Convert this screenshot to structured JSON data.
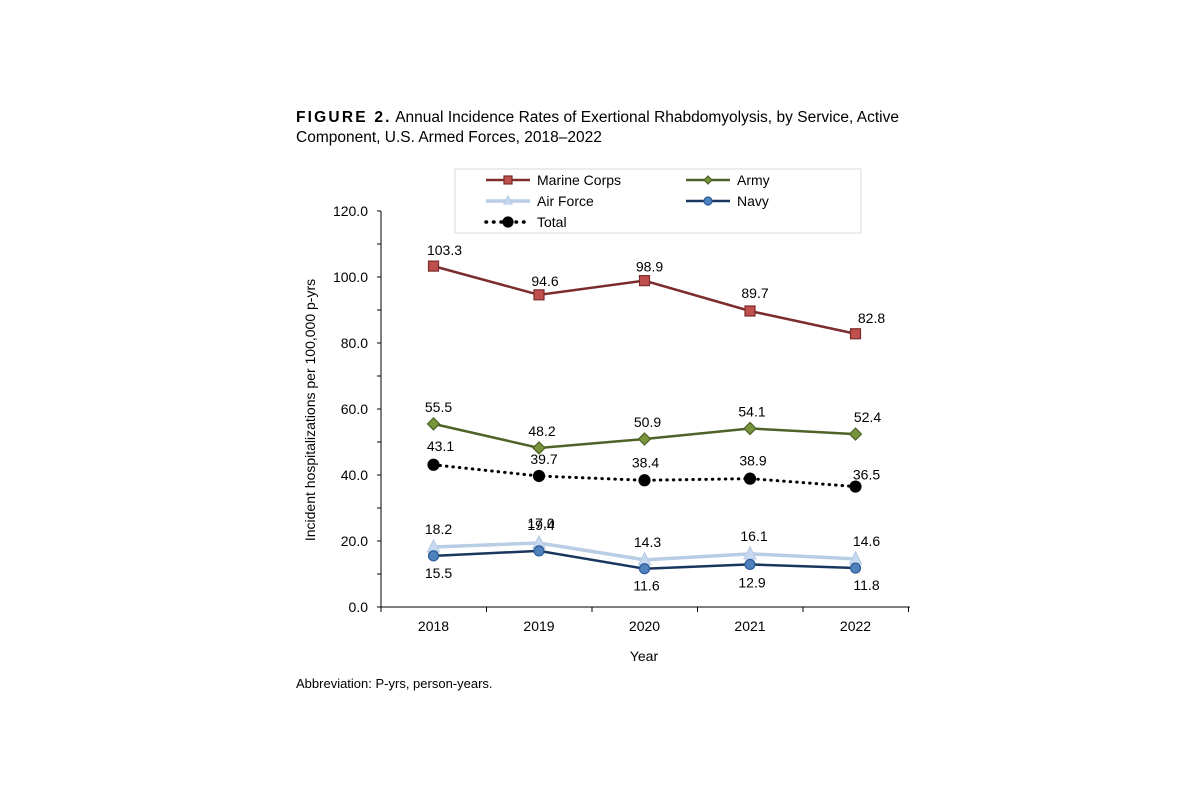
{
  "caption": {
    "label": "FIGURE 2.",
    "text": "Annual Incidence Rates of Exertional Rhabdomyolysis, by Service, Active Component, U.S. Armed Forces, 2018–2022"
  },
  "footnote": "Abbreviation: P-yrs, person-years.",
  "chart_data": {
    "type": "line",
    "title": "Annual Incidence Rates of Exertional Rhabdomyolysis, by Service, Active Component, U.S. Armed Forces, 2018–2022",
    "xlabel": "Year",
    "ylabel": "Incident hospitalizations per 100,000 p-yrs",
    "categories": [
      "2018",
      "2019",
      "2020",
      "2021",
      "2022"
    ],
    "ylim": [
      0,
      120
    ],
    "yticks": [
      "0.0",
      "20.0",
      "40.0",
      "60.0",
      "80.0",
      "100.0",
      "120.0"
    ],
    "ytick_values": [
      0,
      20,
      40,
      60,
      80,
      100,
      120
    ],
    "legend_position": "top",
    "series": [
      {
        "key": "marine",
        "name": "Marine Corps",
        "values": [
          103.3,
          94.6,
          98.9,
          89.7,
          82.8
        ],
        "labels": [
          "103.3",
          "94.6",
          "98.9",
          "89.7",
          "82.8"
        ],
        "color": "#7b2c2c",
        "marker": "square",
        "marker_fill": "#c0504d",
        "line_style": "solid"
      },
      {
        "key": "army",
        "name": "Army",
        "values": [
          55.5,
          48.2,
          50.9,
          54.1,
          52.4
        ],
        "labels": [
          "55.5",
          "48.2",
          "50.9",
          "54.1",
          "52.4"
        ],
        "color": "#4f6228",
        "marker": "diamond",
        "marker_fill": "#77933c",
        "line_style": "solid"
      },
      {
        "key": "airforce",
        "name": "Air Force",
        "values": [
          18.2,
          19.4,
          14.3,
          16.1,
          14.6
        ],
        "labels": [
          "18.2",
          "19.4",
          "14.3",
          "16.1",
          "14.6"
        ],
        "color": "#b9cde5",
        "marker": "triangle",
        "marker_fill": "#c6d9f1",
        "line_style": "solid"
      },
      {
        "key": "navy",
        "name": "Navy",
        "values": [
          15.5,
          17.0,
          11.6,
          12.9,
          11.8
        ],
        "labels": [
          "15.5",
          "17.0",
          "11.6",
          "12.9",
          "11.8"
        ],
        "color": "#17375e",
        "marker": "circle",
        "marker_fill": "#4f81bd",
        "line_style": "solid"
      },
      {
        "key": "total",
        "name": "Total",
        "values": [
          43.1,
          39.7,
          38.4,
          38.9,
          36.5
        ],
        "labels": [
          "43.1",
          "39.7",
          "38.4",
          "38.9",
          "36.5"
        ],
        "color": "#000000",
        "marker": "circle",
        "marker_fill": "#000000",
        "line_style": "dotted"
      }
    ]
  }
}
